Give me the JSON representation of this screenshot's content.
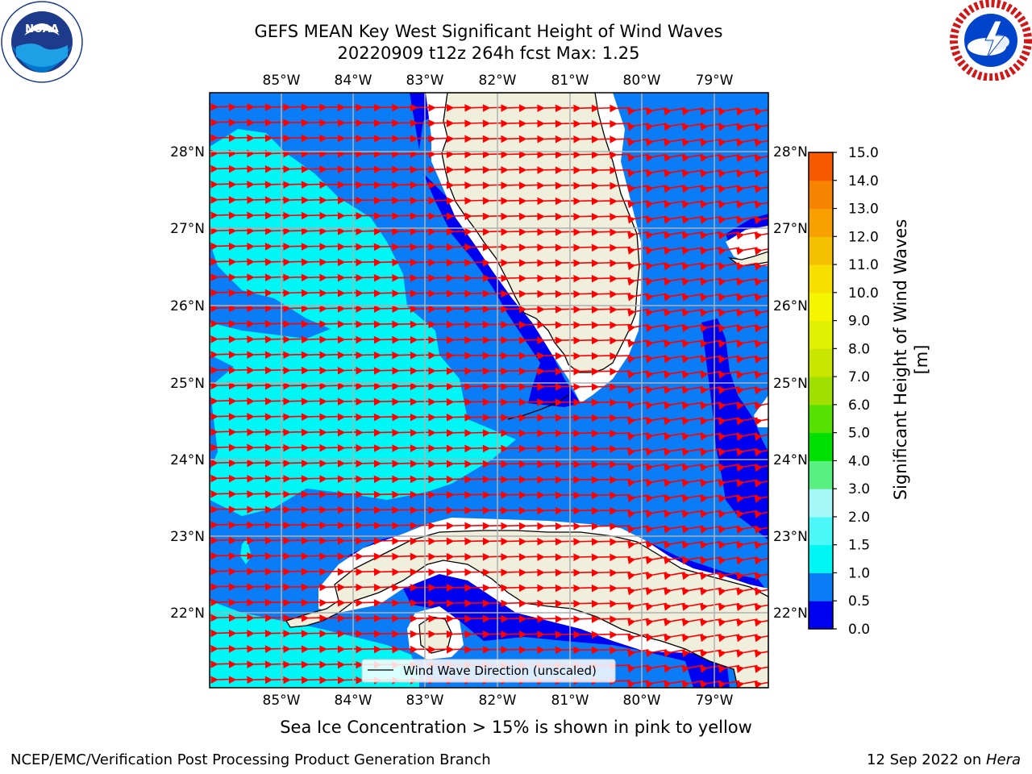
{
  "title": {
    "line1": "GEFS MEAN Key West Significant Height of Wind Waves",
    "line2": "20220909 t12z 264h fcst   Max: 1.25"
  },
  "map": {
    "lon_labels": [
      "85°W",
      "84°W",
      "83°W",
      "82°W",
      "81°W",
      "80°W",
      "79°W"
    ],
    "lat_labels": [
      "28°N",
      "27°N",
      "26°N",
      "25°N",
      "24°N",
      "23°N",
      "22°N"
    ],
    "legend_label": "Wind Wave Direction (unscaled)",
    "colors": {
      "ocean_dark": "#0000f0",
      "ocean_mid": "#0a7cf5",
      "ocean_light": "#00f5f5",
      "land": "#efefdc",
      "arrow": "#ff0000",
      "grid": "#b0b0b0"
    }
  },
  "colorbar": {
    "label": "Significant Height of Wind Waves [m]",
    "ticks": [
      "15.0",
      "14.0",
      "13.0",
      "12.0",
      "11.0",
      "10.0",
      "9.0",
      "8.0",
      "7.0",
      "6.0",
      "5.0",
      "4.0",
      "3.0",
      "2.0",
      "1.5",
      "1.0",
      "0.5",
      "0.0"
    ],
    "colors": [
      "#0000f0",
      "#0a7cf5",
      "#00f5f5",
      "#4cf7f7",
      "#a6f7f7",
      "#59f082",
      "#00e000",
      "#55e000",
      "#a0e000",
      "#c8e600",
      "#e0f000",
      "#f5f500",
      "#f7e000",
      "#f5c000",
      "#f7a000",
      "#f78400",
      "#f75a00",
      "#f72800",
      "#f50000"
    ]
  },
  "footer": {
    "ice_note": "Sea Ice Concentration > 15% is shown in pink to yellow",
    "left": "NCEP/EMC/Verification Post Processing Product Generation Branch",
    "date": "12 Sep 2022 on ",
    "machine": "Hera"
  },
  "logos": {
    "left_icon": "noaa-logo-icon",
    "right_icon": "nws-logo-icon"
  }
}
